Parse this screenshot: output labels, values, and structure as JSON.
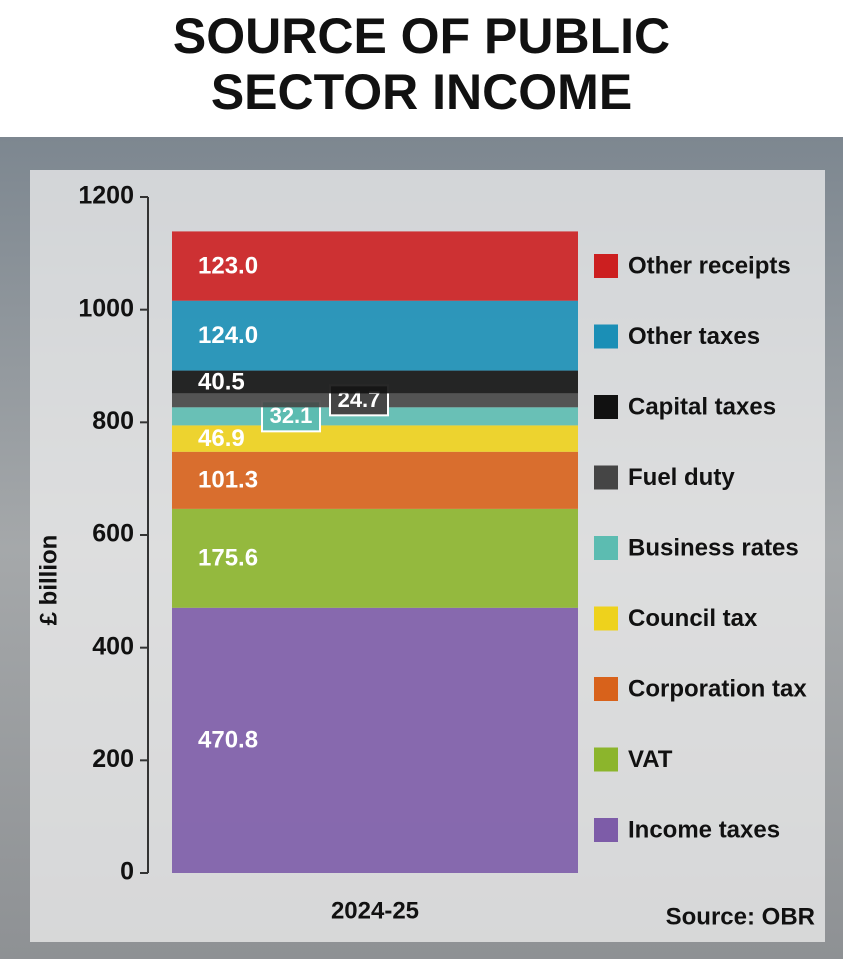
{
  "chart_data": {
    "type": "stacked_bar",
    "title": "SOURCE OF PUBLIC SECTOR INCOME",
    "ylabel": "£ billion",
    "source": "Source: OBR",
    "categories": [
      "2024-25"
    ],
    "ylim": [
      0,
      1200
    ],
    "yticks": [
      0,
      200,
      400,
      600,
      800,
      1000,
      1200
    ],
    "legend": "right",
    "series": [
      {
        "name": "Income taxes",
        "color": "#7d5ca8",
        "values": [
          470.8
        ]
      },
      {
        "name": "VAT",
        "color": "#8cb52c",
        "values": [
          175.6
        ]
      },
      {
        "name": "Corporation tax",
        "color": "#d8621b",
        "values": [
          101.3
        ]
      },
      {
        "name": "Council tax",
        "color": "#eed21c",
        "values": [
          46.9
        ]
      },
      {
        "name": "Business rates",
        "color": "#5cbcb1",
        "values": [
          32.1
        ]
      },
      {
        "name": "Fuel duty",
        "color": "#454545",
        "values": [
          24.7
        ]
      },
      {
        "name": "Capital taxes",
        "color": "#111111",
        "values": [
          40.5
        ]
      },
      {
        "name": "Other taxes",
        "color": "#1b8fb6",
        "values": [
          124.0
        ],
        "value_labels": [
          "124.0"
        ]
      },
      {
        "name": "Other receipts",
        "color": "#cc1f20",
        "values": [
          123.0
        ],
        "value_labels": [
          "123.0"
        ]
      }
    ]
  }
}
